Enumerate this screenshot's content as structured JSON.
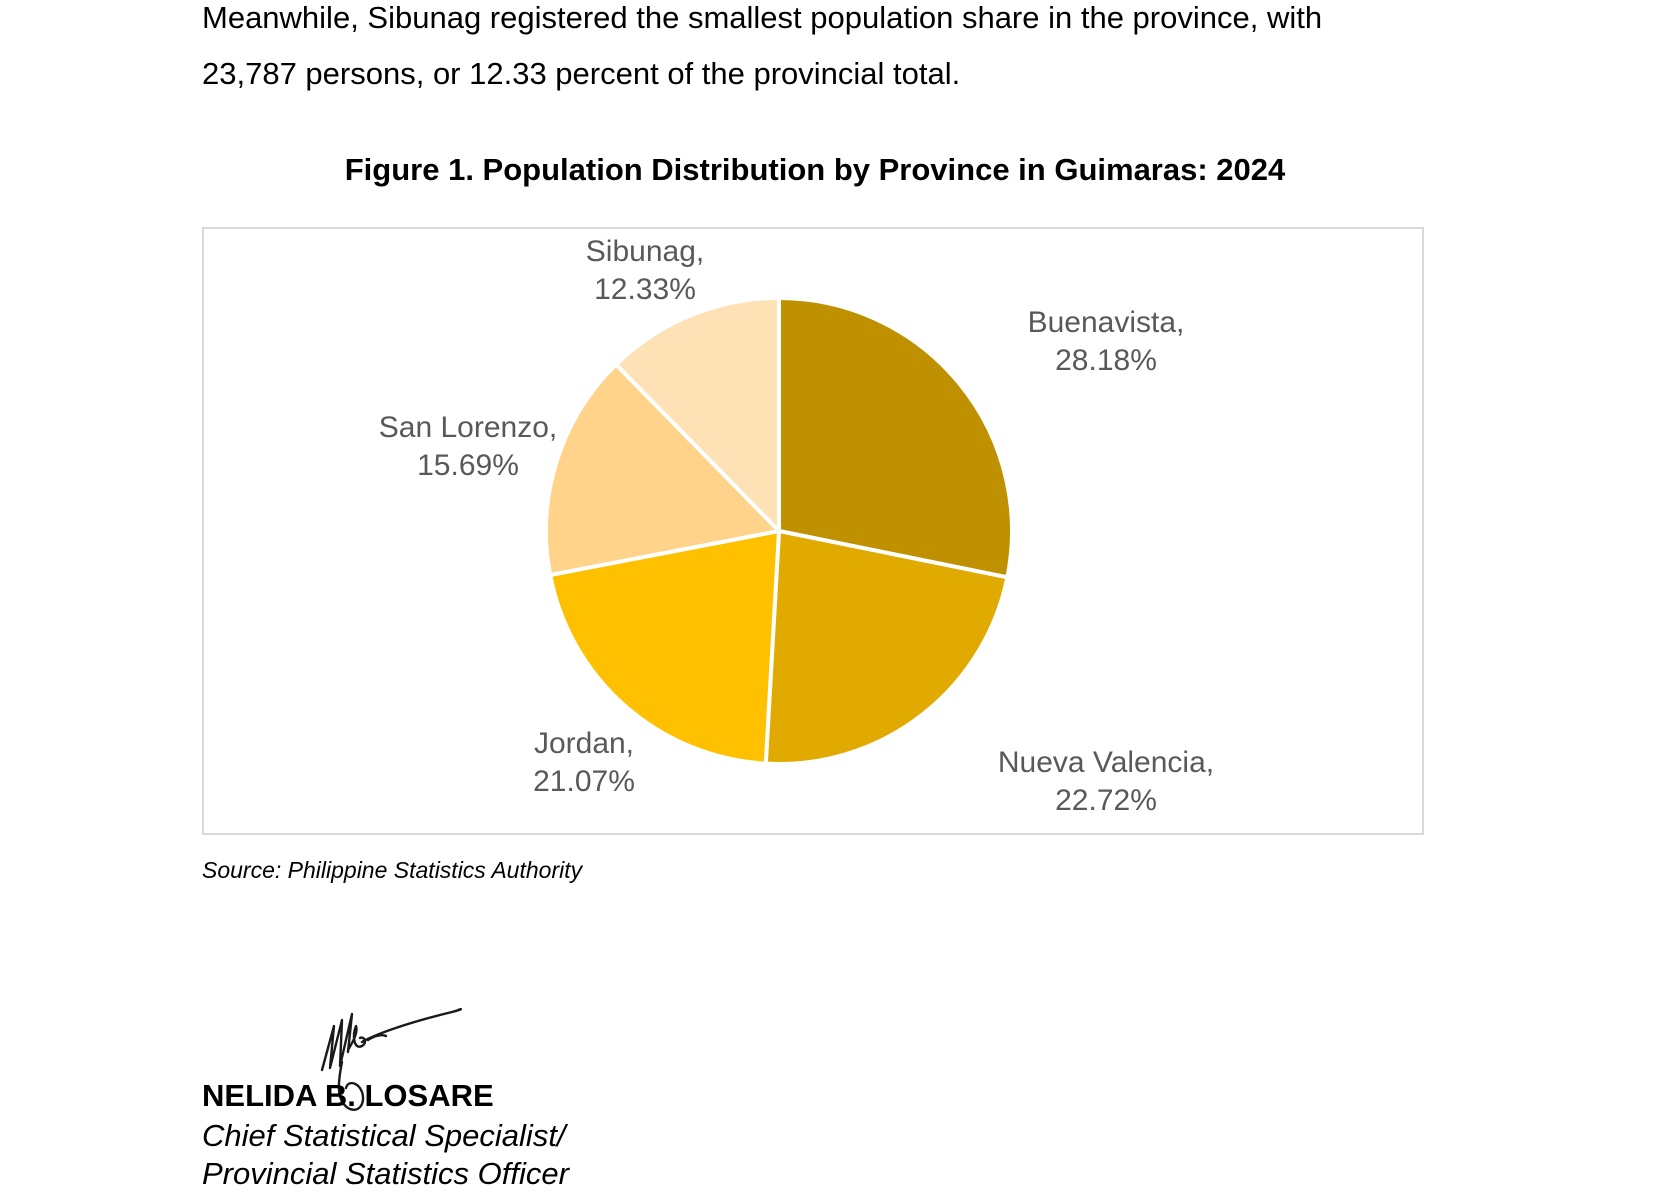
{
  "document": {
    "paragraph_lines": [
      "Meanwhile, Sibunag registered the smallest population share in the province, with",
      "23,787 persons, or 12.33 percent of the provincial total."
    ],
    "source": "Source: Philippine Statistics Authority"
  },
  "chart_data": {
    "type": "pie",
    "title": "Figure 1. Population Distribution by Province in Guimaras: 2024",
    "start_angle": "12 o'clock",
    "direction": "clockwise",
    "slices": [
      {
        "label": "Buenavista",
        "value": 28.18,
        "display_name": "Buenavista,",
        "display_value": "28.18%",
        "color": "#BF9000"
      },
      {
        "label": "Nueva Valencia",
        "value": 22.72,
        "display_name": "Nueva Valencia,",
        "display_value": "22.72%",
        "color": "#E0AA00"
      },
      {
        "label": "Jordan",
        "value": 21.07,
        "display_name": "Jordan,",
        "display_value": "21.07%",
        "color": "#FFC000"
      },
      {
        "label": "San Lorenzo",
        "value": 15.69,
        "display_name": "San Lorenzo,",
        "display_value": "15.69%",
        "color": "#FFD38A"
      },
      {
        "label": "Sibunag",
        "value": 12.33,
        "display_name": "Sibunag,",
        "display_value": "12.33%",
        "color": "#FFE1B6"
      }
    ]
  },
  "signature_block": {
    "name": "NELIDA B. LOSARE",
    "role_lines": [
      "Chief Statistical Specialist/",
      "Provincial Statistics Officer"
    ]
  }
}
